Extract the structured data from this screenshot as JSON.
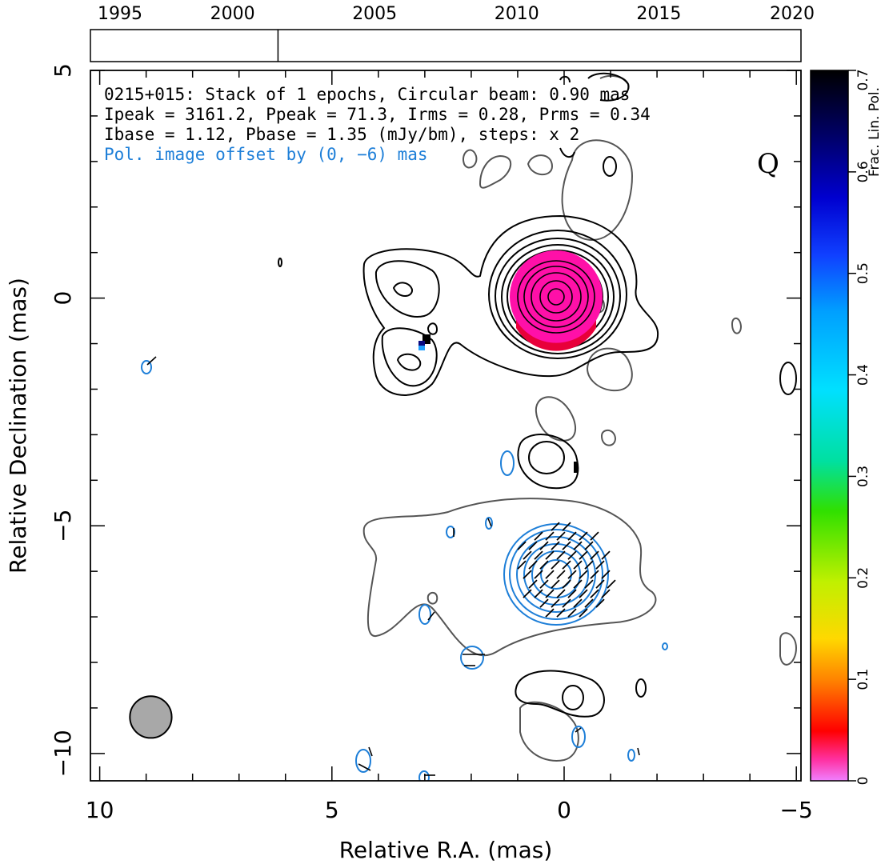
{
  "info": {
    "line1": "0215+015: Stack of 1 epochs, Circular beam: 0.90 mas",
    "line2": "Ipeak = 3161.2, Ppeak = 71.3, Irms = 0.28, Prms = 0.34",
    "line3": "Ibase = 1.12, Pbase = 1.35 (mJy/bm), steps: x 2",
    "line4": "Pol. image offset by (0, −6) mas"
  },
  "corner_label": "Q",
  "chart_data": {
    "type": "contour",
    "xlabel": "Relative R.A. (mas)",
    "ylabel": "Relative Declination (mas)",
    "xlim": [
      10.2,
      -5.1
    ],
    "ylim": [
      -10.6,
      5
    ],
    "xticks": [
      10,
      5,
      0,
      -5
    ],
    "xtick_labels": [
      "10",
      "5",
      "0",
      "−5"
    ],
    "yticks": [
      5,
      0,
      -5,
      -10
    ],
    "ytick_labels": [
      "5",
      "0",
      "−5",
      "−10"
    ],
    "beam": {
      "ra": 8.9,
      "dec": -9.2,
      "diameter_mas": 0.9
    },
    "epoch_axis": {
      "xlim": [
        1995,
        2020
      ],
      "ticks": [
        1995,
        2000,
        2005,
        2010,
        2015,
        2020
      ],
      "tick_labels": [
        "1995",
        "2000",
        "2005",
        "2010",
        "2015",
        "2020"
      ],
      "epochs": [
        2001.6
      ]
    },
    "colorbar": {
      "label": "Frac. Lin. Pol.",
      "range": [
        0,
        0.7
      ],
      "ticks": [
        0,
        0.1,
        0.2,
        0.3,
        0.4,
        0.5,
        0.6,
        0.7
      ],
      "tick_labels": [
        "0",
        "0.1",
        "0.2",
        "0.3",
        "0.4",
        "0.5",
        "0.6",
        "0.7"
      ]
    },
    "total_intensity_core": {
      "ra": 0.0,
      "dec": 0.0,
      "peak": 3161.2,
      "frac_pol": 0.02
    },
    "polarization_core": {
      "ra": 0.0,
      "dec": -6.0,
      "peak": 71.3
    }
  }
}
